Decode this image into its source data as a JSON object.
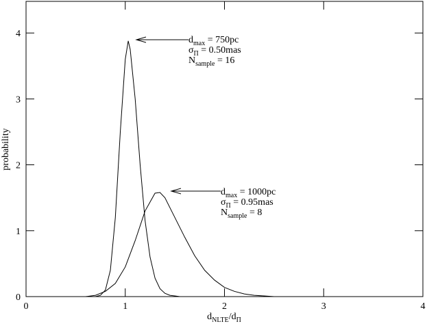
{
  "chart_data": {
    "type": "line",
    "x_label": [
      "d",
      "NLTE",
      "/d",
      "Π"
    ],
    "y_label": "probability",
    "xlim": [
      0,
      4
    ],
    "ylim": [
      0,
      4.48
    ],
    "xticks": [
      0,
      1,
      2,
      3,
      4
    ],
    "yticks": [
      0,
      1,
      2,
      3,
      4
    ],
    "series": [
      {
        "color": "#000000",
        "x": [
          0.7,
          0.75,
          0.8,
          0.85,
          0.9,
          0.95,
          1.0,
          1.03,
          1.05,
          1.1,
          1.15,
          1.2,
          1.25,
          1.3,
          1.35,
          1.4,
          1.45,
          1.5,
          1.55
        ],
        "values": [
          0,
          0.02,
          0.1,
          0.4,
          1.2,
          2.5,
          3.6,
          3.88,
          3.75,
          3.0,
          2.0,
          1.15,
          0.6,
          0.28,
          0.12,
          0.05,
          0.02,
          0.01,
          0
        ]
      },
      {
        "color": "#000000",
        "x": [
          0.6,
          0.7,
          0.8,
          0.9,
          1.0,
          1.1,
          1.2,
          1.3,
          1.35,
          1.4,
          1.5,
          1.6,
          1.7,
          1.8,
          1.9,
          2.0,
          2.1,
          2.2,
          2.3,
          2.4,
          2.5
        ],
        "values": [
          0,
          0.02,
          0.08,
          0.2,
          0.45,
          0.85,
          1.3,
          1.57,
          1.58,
          1.5,
          1.2,
          0.9,
          0.62,
          0.4,
          0.25,
          0.14,
          0.08,
          0.04,
          0.02,
          0.01,
          0
        ]
      }
    ],
    "annotations": [
      {
        "lines": [
          [
            "d",
            "max",
            " = 750pc"
          ],
          [
            "σ",
            "Π",
            " = 0.50mas"
          ],
          [
            "N",
            "sample",
            " = 16"
          ]
        ]
      },
      {
        "lines": [
          [
            "d",
            "max",
            " = 1000pc"
          ],
          [
            "σ",
            "Π",
            " = 0.95mas"
          ],
          [
            "N",
            "sample",
            " = 8"
          ]
        ]
      }
    ]
  }
}
